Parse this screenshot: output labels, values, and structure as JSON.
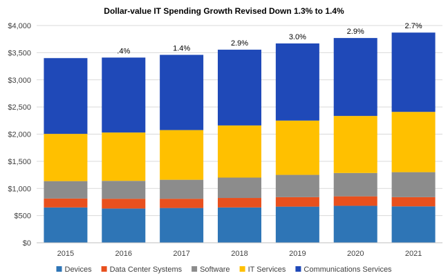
{
  "chart_data": {
    "type": "bar",
    "stacked": true,
    "title": "Dollar-value IT Spending Growth Revised Down 1.3% to 1.4%",
    "xlabel": "",
    "ylabel": "",
    "ylim": [
      0,
      4000
    ],
    "y_ticks": [
      0,
      500,
      1000,
      1500,
      2000,
      2500,
      3000,
      3500,
      4000
    ],
    "y_tick_labels": [
      "$0",
      "$500",
      "$1,000",
      "$1,500",
      "$2,000",
      "$2,500",
      "$3,000",
      "$3,500",
      "$4,000"
    ],
    "grid": true,
    "legend_position": "bottom",
    "categories": [
      "2015",
      "2016",
      "2017",
      "2018",
      "2019",
      "2020",
      "2021"
    ],
    "growth_labels": [
      "",
      ".4%",
      "1.4%",
      "2.9%",
      "3.0%",
      "2.9%",
      "2.7%"
    ],
    "series": [
      {
        "name": "Devices",
        "color": "#2e75b6",
        "values": [
          650,
          630,
          640,
          650,
          665,
          680,
          670
        ]
      },
      {
        "name": "Data Center Systems",
        "color": "#e8501e",
        "values": [
          165,
          180,
          170,
          175,
          175,
          175,
          170
        ]
      },
      {
        "name": "Software",
        "color": "#8c8c8c",
        "values": [
          320,
          330,
          350,
          375,
          410,
          430,
          460
        ]
      },
      {
        "name": "IT Services",
        "color": "#ffc000",
        "values": [
          870,
          890,
          915,
          960,
          1000,
          1050,
          1110
        ]
      },
      {
        "name": "Communications Services",
        "color": "#1f49b8",
        "values": [
          1395,
          1380,
          1385,
          1395,
          1420,
          1435,
          1460
        ]
      }
    ]
  }
}
